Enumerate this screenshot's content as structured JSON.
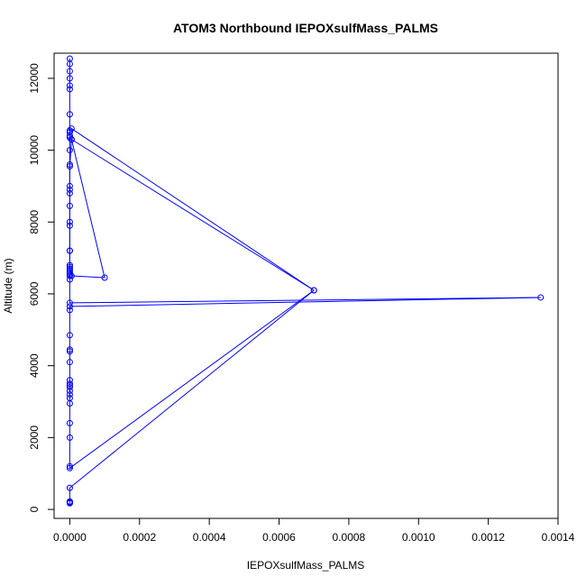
{
  "chart_data": {
    "type": "scatter",
    "title": "ATOM3 Northbound IEPOXsulfMass_PALMS",
    "xlabel": "IEPOXsulfMass_PALMS",
    "ylabel": "Altitude (m)",
    "xlim": [
      -4.5e-05,
      0.0014
    ],
    "ylim": [
      -250,
      12700
    ],
    "x_ticks": [
      {
        "value": 0,
        "label": "0.0000"
      },
      {
        "value": 0.0002,
        "label": "0.0002"
      },
      {
        "value": 0.0004,
        "label": "0.0004"
      },
      {
        "value": 0.0006,
        "label": "0.0006"
      },
      {
        "value": 0.0008,
        "label": "0.0008"
      },
      {
        "value": 0.001,
        "label": "0.0010"
      },
      {
        "value": 0.0012,
        "label": "0.0012"
      },
      {
        "value": 0.0014,
        "label": "0.0014"
      }
    ],
    "y_ticks": [
      {
        "value": 0,
        "label": "0"
      },
      {
        "value": 2000,
        "label": "2000"
      },
      {
        "value": 4000,
        "label": "4000"
      },
      {
        "value": 6000,
        "label": "6000"
      },
      {
        "value": 8000,
        "label": "8000"
      },
      {
        "value": 10000,
        "label": "10000"
      },
      {
        "value": 12000,
        "label": "12000"
      }
    ],
    "color": "#0000ff",
    "grid": false,
    "series": [
      {
        "x": [
          0,
          0,
          0,
          0,
          0,
          0.0007,
          0,
          0,
          0,
          0,
          0,
          0,
          0,
          0,
          0,
          0,
          0,
          0,
          0,
          0,
          0,
          0,
          0,
          0,
          0.00135,
          0,
          0,
          0,
          0,
          0,
          0,
          0,
          0,
          0,
          0,
          0,
          0,
          0,
          0,
          5e-06,
          0.0007,
          5e-06,
          0,
          0,
          0,
          5e-06,
          0.0001,
          5e-06,
          0,
          0,
          0,
          0,
          0,
          0,
          0,
          0,
          0,
          0,
          0,
          0,
          0,
          0
        ],
        "y": [
          180,
          170,
          200,
          220,
          600,
          6100,
          1150,
          1200,
          2000,
          2400,
          2950,
          3100,
          3200,
          3300,
          3400,
          3450,
          3500,
          3600,
          4100,
          4400,
          4450,
          4850,
          5550,
          5650,
          5900,
          5750,
          6400,
          6500,
          6550,
          6600,
          6650,
          6750,
          6800,
          7200,
          7900,
          8450,
          8800,
          8900,
          9550,
          10300,
          6100,
          10600,
          10550,
          10400,
          10350,
          10300,
          6450,
          6500,
          6700,
          7200,
          8000,
          9000,
          9600,
          10000,
          10500,
          11000,
          11700,
          11800,
          12000,
          12200,
          12400,
          12550
        ]
      }
    ]
  }
}
